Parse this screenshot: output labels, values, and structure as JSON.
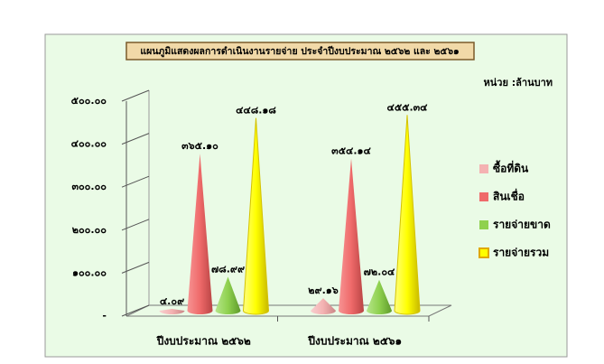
{
  "chart_data": {
    "type": "cone3d",
    "title": "แผนภูมิแสดงผลการดำเนินงานรายจ่าย ประจำปีงบประมาณ ๒๕๖๒ และ ๒๕๖๑",
    "unit": "หน่วย :ล้านบาท",
    "categories": [
      "ปีงบประมาณ ๒๕๖๒",
      "ปีงบประมาณ ๒๕๖๑"
    ],
    "series": [
      {
        "name": "ซื้อที่ดิน",
        "color": "#f4b2b2",
        "values": [
          4.09,
          29.16
        ],
        "value_labels": [
          "๔.๐๙",
          "๒๙.๑๖"
        ]
      },
      {
        "name": "สินเชื่อ",
        "color": "#ef6a6a",
        "values": [
          365.1,
          354.14
        ],
        "value_labels": [
          "๓๖๕.๑๐",
          "๓๕๔.๑๔"
        ]
      },
      {
        "name": "รายจ่ายขาด",
        "color": "#8fd14f",
        "values": [
          78.99,
          72.04
        ],
        "value_labels": [
          "๗๘.๙๙",
          "๗๒.๐๔"
        ]
      },
      {
        "name": "รายจ่ายรวม",
        "color": "#ffff00",
        "values": [
          448.18,
          455.34
        ],
        "value_labels": [
          "๔๔๘.๑๘",
          "๔๕๕.๓๔"
        ]
      }
    ],
    "ylim": [
      0,
      500
    ],
    "yticks": [
      {
        "value": 0,
        "label": "-"
      },
      {
        "value": 100,
        "label": "๑๐๐.๐๐"
      },
      {
        "value": 200,
        "label": "๒๐๐.๐๐"
      },
      {
        "value": 300,
        "label": "๓๐๐.๐๐"
      },
      {
        "value": 400,
        "label": "๔๐๐.๐๐"
      },
      {
        "value": 500,
        "label": "๕๐๐.๐๐"
      }
    ],
    "legend": "right"
  }
}
